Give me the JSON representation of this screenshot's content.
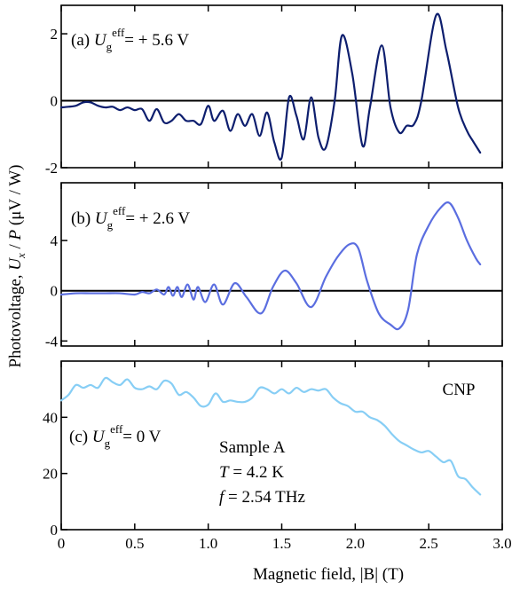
{
  "chart_data": [
    {
      "type": "line",
      "panel_label": "(a)",
      "gate_voltage_label": "= + 5.6 V",
      "ylim": [
        -2.0,
        2.85
      ],
      "y_ticks": [
        2,
        0,
        -2
      ],
      "y_tick_labels": [
        "2",
        "0",
        "-2"
      ],
      "xlim": [
        0,
        3.0
      ],
      "zero_line": true,
      "color": "#0d1e6e",
      "series": [
        {
          "x": [
            0.0,
            0.05,
            0.1,
            0.15,
            0.2,
            0.25,
            0.3,
            0.35,
            0.4,
            0.45,
            0.5,
            0.55,
            0.6,
            0.65,
            0.7,
            0.75,
            0.8,
            0.85,
            0.9,
            0.95,
            1.0,
            1.04,
            1.1,
            1.15,
            1.2,
            1.25,
            1.3,
            1.35,
            1.4,
            1.45,
            1.5,
            1.55,
            1.6,
            1.65,
            1.7,
            1.75,
            1.8,
            1.86,
            1.91,
            1.98,
            2.05,
            2.1,
            2.18,
            2.24,
            2.3,
            2.35,
            2.4,
            2.45,
            2.55,
            2.62,
            2.7,
            2.76,
            2.8,
            2.85
          ],
          "y": [
            -0.2,
            -0.18,
            -0.15,
            -0.05,
            -0.05,
            -0.15,
            -0.2,
            -0.18,
            -0.28,
            -0.2,
            -0.28,
            -0.25,
            -0.6,
            -0.25,
            -0.65,
            -0.6,
            -0.4,
            -0.6,
            -0.6,
            -0.7,
            -0.15,
            -0.6,
            -0.3,
            -0.9,
            -0.4,
            -0.75,
            -0.4,
            -1.05,
            -0.35,
            -1.25,
            -1.7,
            0.1,
            -0.45,
            -1.15,
            0.1,
            -1.1,
            -1.4,
            0.0,
            1.95,
            0.8,
            -1.35,
            -0.2,
            1.65,
            -0.2,
            -0.95,
            -0.75,
            -0.7,
            0.0,
            2.55,
            1.5,
            -0.2,
            -0.9,
            -1.2,
            -1.55
          ]
        }
      ]
    },
    {
      "type": "line",
      "panel_label": "(b)",
      "gate_voltage_label": "= + 2.6 V",
      "ylim": [
        -4.4,
        8.6
      ],
      "y_ticks": [
        4,
        0,
        -4
      ],
      "y_tick_labels": [
        "4",
        "0",
        "-4"
      ],
      "xlim": [
        0,
        3.0
      ],
      "zero_line": true,
      "color": "#5b6ee0",
      "series": [
        {
          "x": [
            0.0,
            0.1,
            0.2,
            0.3,
            0.4,
            0.5,
            0.55,
            0.6,
            0.65,
            0.7,
            0.73,
            0.76,
            0.79,
            0.82,
            0.86,
            0.9,
            0.93,
            0.98,
            1.04,
            1.1,
            1.18,
            1.26,
            1.36,
            1.44,
            1.52,
            1.6,
            1.7,
            1.8,
            1.88,
            1.96,
            2.02,
            2.08,
            2.16,
            2.24,
            2.3,
            2.36,
            2.42,
            2.5,
            2.58,
            2.64,
            2.7,
            2.76,
            2.82,
            2.85
          ],
          "y": [
            -0.3,
            -0.2,
            -0.2,
            -0.2,
            -0.2,
            -0.3,
            -0.1,
            -0.2,
            0.1,
            -0.3,
            0.3,
            -0.4,
            0.3,
            -0.5,
            0.5,
            -0.7,
            0.3,
            -0.9,
            0.5,
            -1.1,
            0.6,
            -0.5,
            -1.8,
            0.3,
            1.6,
            0.6,
            -1.3,
            1.1,
            2.7,
            3.7,
            3.4,
            0.8,
            -1.8,
            -2.7,
            -3.0,
            -1.5,
            2.9,
            5.2,
            6.6,
            7.0,
            5.8,
            4.0,
            2.6,
            2.1
          ]
        }
      ]
    },
    {
      "type": "line",
      "panel_label": "(c)",
      "gate_voltage_label": "= 0 V",
      "ylim": [
        0,
        60
      ],
      "y_ticks": [
        40,
        20,
        0
      ],
      "y_tick_labels": [
        "40",
        "20",
        "0"
      ],
      "xlim": [
        0,
        3.0
      ],
      "zero_line": false,
      "color": "#87cef5",
      "annotations": {
        "corner_label": "CNP",
        "sample_label": "Sample A",
        "temperature_label": "= 4.2 K",
        "frequency_label": "= 2.54 THz"
      },
      "series": [
        {
          "x": [
            0.0,
            0.05,
            0.1,
            0.15,
            0.2,
            0.25,
            0.3,
            0.35,
            0.4,
            0.45,
            0.5,
            0.55,
            0.6,
            0.65,
            0.7,
            0.75,
            0.8,
            0.85,
            0.9,
            0.95,
            1.0,
            1.05,
            1.1,
            1.15,
            1.2,
            1.25,
            1.3,
            1.35,
            1.4,
            1.45,
            1.5,
            1.55,
            1.6,
            1.65,
            1.7,
            1.75,
            1.8,
            1.85,
            1.9,
            1.95,
            2.0,
            2.05,
            2.1,
            2.15,
            2.2,
            2.25,
            2.3,
            2.35,
            2.4,
            2.45,
            2.5,
            2.55,
            2.6,
            2.65,
            2.7,
            2.75,
            2.8,
            2.85
          ],
          "y": [
            46.0,
            48.0,
            51.5,
            50.5,
            51.5,
            50.5,
            54.0,
            52.5,
            51.5,
            53.5,
            50.5,
            50.0,
            51.0,
            50.0,
            53.0,
            52.0,
            48.0,
            49.0,
            47.0,
            44.0,
            44.5,
            48.5,
            45.5,
            46.0,
            45.5,
            45.5,
            47.0,
            50.5,
            50.0,
            48.5,
            50.0,
            48.5,
            50.5,
            49.0,
            50.0,
            49.5,
            50.0,
            47.0,
            45.0,
            44.0,
            42.0,
            42.0,
            40.0,
            39.0,
            37.0,
            34.0,
            31.5,
            30.0,
            28.5,
            27.5,
            28.0,
            26.0,
            24.0,
            24.5,
            19.0,
            18.0,
            15.0,
            12.5
          ]
        }
      ]
    }
  ],
  "y_axis_label": {
    "prefix": "Photovoltage, ",
    "symbol_u": "U",
    "sub_x": "x",
    "mid": " / ",
    "symbol_p": "P",
    "suffix": " (μV / W)"
  },
  "x_axis": {
    "label": "Magnetic field, |B| (T)",
    "ticks": [
      0,
      0.5,
      1.0,
      1.5,
      2.0,
      2.5,
      3.0
    ],
    "tick_labels": [
      "0",
      "0.5",
      "1.0",
      "1.5",
      "2.0",
      "2.5",
      "3.0"
    ]
  },
  "symbols": {
    "gate_main": "U",
    "gate_sub": "g",
    "gate_sup": "eff",
    "temperature": "T",
    "frequency": "f"
  }
}
